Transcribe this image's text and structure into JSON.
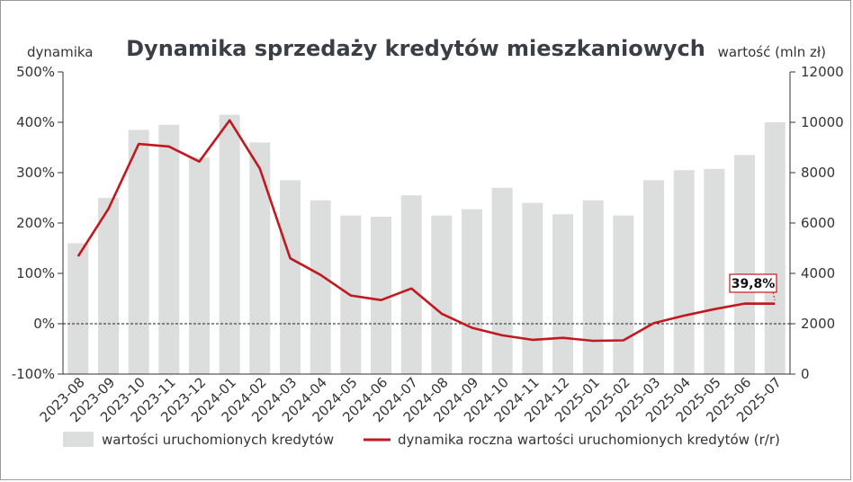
{
  "chart_data": {
    "type": "bar",
    "title": "Dynamika sprzedaży kredytów mieszkaniowych",
    "ylabel_left": "dynamika",
    "ylabel_right": "wartość (mln zł)",
    "categories": [
      "2023-08",
      "2023-09",
      "2023-10",
      "2023-11",
      "2023-12",
      "2024-01",
      "2024-02",
      "2024-03",
      "2024-04",
      "2024-05",
      "2024-06",
      "2024-07",
      "2024-08",
      "2024-09",
      "2024-10",
      "2024-11",
      "2024-12",
      "2025-01",
      "2025-02",
      "2025-03",
      "2025-04",
      "2025-05",
      "2025-06",
      "2025-07"
    ],
    "left_axis": {
      "min": -100,
      "max": 500,
      "ticks": [
        "500%",
        "400%",
        "300%",
        "200%",
        "100%",
        "0%",
        "-100%"
      ],
      "tick_values": [
        500,
        400,
        300,
        200,
        100,
        0,
        -100
      ]
    },
    "right_axis": {
      "min": 0,
      "max": 12000,
      "ticks": [
        "12000",
        "10000",
        "8000",
        "6000",
        "4000",
        "2000",
        "0"
      ],
      "tick_values": [
        12000,
        10000,
        8000,
        6000,
        4000,
        2000,
        0
      ]
    },
    "series": [
      {
        "name": "wartości uruchomionych kredytów",
        "kind": "bar",
        "axis": "right",
        "color": "#dcdddd",
        "values": [
          5200,
          7000,
          9700,
          9900,
          8600,
          10300,
          9200,
          7700,
          6900,
          6300,
          6250,
          7100,
          6300,
          6550,
          7400,
          6800,
          6350,
          6900,
          6300,
          7700,
          8100,
          8150,
          8700,
          10000
        ]
      },
      {
        "name": "dynamika roczna wartości uruchomionych kredytów (r/r)",
        "kind": "line",
        "axis": "left",
        "color": "#c0191f",
        "values": [
          134,
          228,
          357,
          352,
          322,
          404,
          308,
          130,
          97,
          56,
          47,
          70,
          20,
          -8,
          -23,
          -32,
          -28,
          -34,
          -33,
          1,
          16,
          29,
          40,
          39.8
        ]
      }
    ],
    "annotation": {
      "text": "39,8%",
      "category": "2025-07",
      "value": 39.8
    },
    "zero_line": "dashed",
    "legend_position": "bottom"
  }
}
